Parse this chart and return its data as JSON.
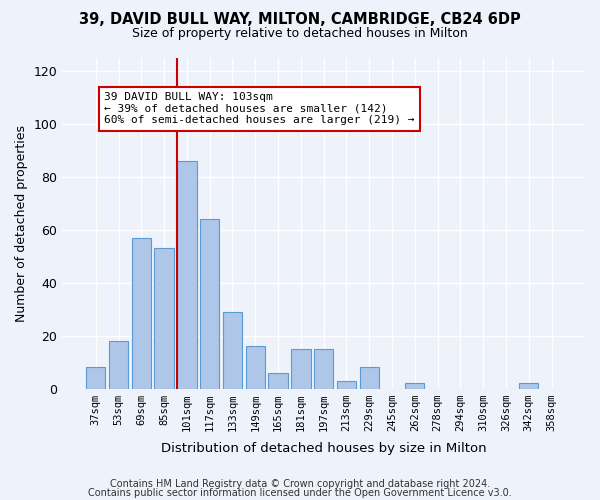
{
  "title1": "39, DAVID BULL WAY, MILTON, CAMBRIDGE, CB24 6DP",
  "title2": "Size of property relative to detached houses in Milton",
  "xlabel": "Distribution of detached houses by size in Milton",
  "ylabel": "Number of detached properties",
  "categories": [
    "37sqm",
    "53sqm",
    "69sqm",
    "85sqm",
    "101sqm",
    "117sqm",
    "133sqm",
    "149sqm",
    "165sqm",
    "181sqm",
    "197sqm",
    "213sqm",
    "229sqm",
    "245sqm",
    "262sqm",
    "278sqm",
    "294sqm",
    "310sqm",
    "326sqm",
    "342sqm",
    "358sqm"
  ],
  "values": [
    8,
    18,
    57,
    53,
    86,
    64,
    29,
    16,
    6,
    15,
    15,
    3,
    8,
    0,
    2,
    0,
    0,
    0,
    0,
    2,
    0
  ],
  "bar_color": "#aec6e8",
  "bar_edge_color": "#5b9bd5",
  "vline_x_index": 4,
  "vline_color": "#cc0000",
  "ylim": [
    0,
    125
  ],
  "yticks": [
    0,
    20,
    40,
    60,
    80,
    100,
    120
  ],
  "annotation_text": "39 DAVID BULL WAY: 103sqm\n← 39% of detached houses are smaller (142)\n60% of semi-detached houses are larger (219) →",
  "annotation_box_color": "#ffffff",
  "annotation_box_edge": "#cc0000",
  "footer1": "Contains HM Land Registry data © Crown copyright and database right 2024.",
  "footer2": "Contains public sector information licensed under the Open Government Licence v3.0.",
  "background_color": "#eef2fb",
  "grid_color": "#ffffff"
}
